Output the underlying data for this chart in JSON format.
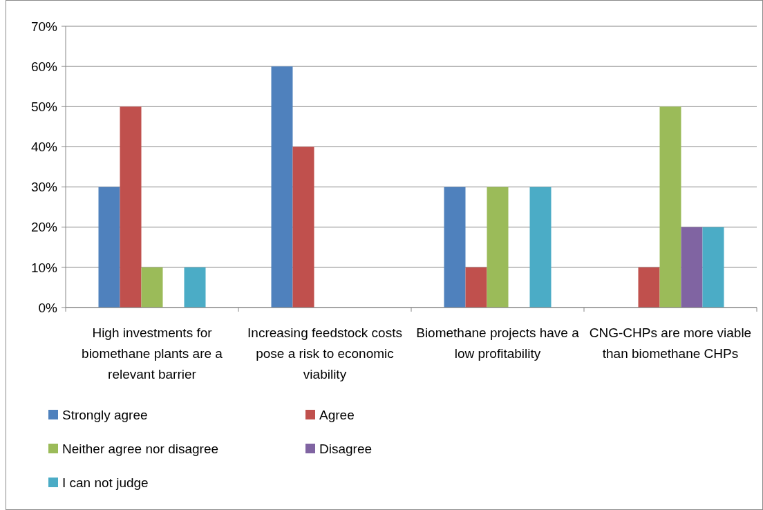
{
  "chart_data": {
    "type": "bar",
    "categories": [
      "High investments for biomethane plants are a relevant barrier",
      "Increasing feedstock costs pose a risk to economic viability",
      "Biomethane projects have a low profitability",
      "CNG-CHPs are more viable than biomethane CHPs"
    ],
    "series": [
      {
        "name": "Strongly agree",
        "color": "#4f81bd",
        "values": [
          30,
          60,
          30,
          0
        ]
      },
      {
        "name": "Agree",
        "color": "#c0504d",
        "values": [
          50,
          40,
          10,
          10
        ]
      },
      {
        "name": "Neither agree nor disagree",
        "color": "#9bbb59",
        "values": [
          10,
          0,
          30,
          50
        ]
      },
      {
        "name": "Disagree",
        "color": "#8064a2",
        "values": [
          0,
          0,
          0,
          20
        ]
      },
      {
        "name": "I can not judge",
        "color": "#4bacc6",
        "values": [
          10,
          0,
          30,
          20
        ]
      }
    ],
    "ylim": [
      0,
      70
    ],
    "yticks": [
      {
        "value": 0,
        "label": "0%"
      },
      {
        "value": 10,
        "label": "10%"
      },
      {
        "value": 20,
        "label": "20%"
      },
      {
        "value": 30,
        "label": "30%"
      },
      {
        "value": 40,
        "label": "40%"
      },
      {
        "value": 50,
        "label": "50%"
      },
      {
        "value": 60,
        "label": "60%"
      },
      {
        "value": 70,
        "label": "70%"
      }
    ],
    "grid": "y",
    "legend": "bottom"
  }
}
